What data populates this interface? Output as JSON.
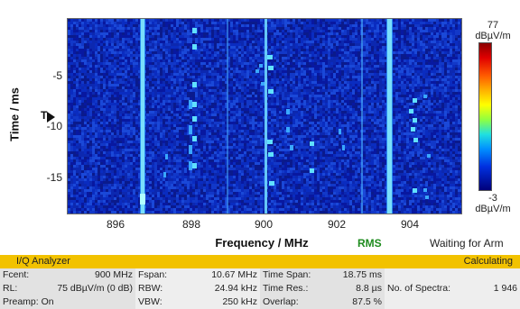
{
  "plot": {
    "y_axis_label": "Time / ms",
    "x_axis_label": "Frequency / MHz",
    "y_ticks": [
      "-5",
      "-10",
      "-15"
    ],
    "x_ticks": [
      "896",
      "898",
      "900",
      "902",
      "904"
    ],
    "trigger_marker": "T",
    "detector": "RMS",
    "status": "Waiting for Arm"
  },
  "colorbar": {
    "max_value": "77",
    "max_unit": "dBµV/m",
    "min_value": "-3",
    "min_unit": "dBµV/m"
  },
  "panel": {
    "title": "I/Q Analyzer",
    "state": "Calculating",
    "rows": [
      {
        "c1_label": "Fcent:",
        "c1_value": "900 MHz",
        "c2_label": "Fspan:",
        "c2_value": "10.67 MHz",
        "c3_label": "Time Span:",
        "c3_value": "18.75 ms",
        "c4_label": "",
        "c4_value": ""
      },
      {
        "c1_label": "RL:",
        "c1_value": "75 dBµV/m (0 dB)",
        "c2_label": "RBW:",
        "c2_value": "24.94 kHz",
        "c3_label": "Time Res.:",
        "c3_value": "8.8 µs",
        "c4_label": "No. of Spectra:",
        "c4_value": "1 946"
      },
      {
        "c1_label": "Preamp: On",
        "c1_value": "",
        "c2_label": "VBW:",
        "c2_value": "250 kHz",
        "c3_label": "Overlap:",
        "c3_value": "87.5 %",
        "c4_label": "",
        "c4_value": ""
      }
    ]
  },
  "colors": {
    "background": "#0a1f9a",
    "header": "#f2c200",
    "rms": "#1e8c1e"
  }
}
